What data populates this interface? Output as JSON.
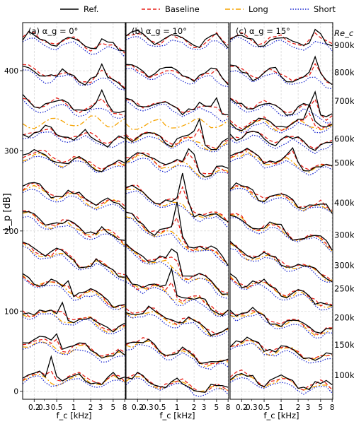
{
  "chart_data": {
    "type": "line",
    "legend": {
      "placement": "top",
      "entries": [
        {
          "name": "Ref.",
          "color": "#000000",
          "style": "solid"
        },
        {
          "name": "Baseline",
          "color": "#e8211a",
          "style": "dashed"
        },
        {
          "name": "Long",
          "color": "#f5a300",
          "style": "dashdot"
        },
        {
          "name": "Short",
          "color": "#1f2bd0",
          "style": "dotted"
        }
      ]
    },
    "ylabel": "L_p [dB]",
    "ylim": [
      -10,
      460
    ],
    "yticks": [
      0,
      100,
      200,
      300,
      400
    ],
    "xscale": "log",
    "xlim": [
      0.125,
      8.2
    ],
    "xticks": [
      0.2,
      0.5,
      1,
      2,
      5,
      8
    ],
    "xticklabels": [
      "0.2",
      "0.5",
      "1",
      "2",
      "5",
      "8"
    ],
    "minor_xticklabels": [
      {
        "value": 0.3,
        "label": "0.3"
      },
      {
        "value": 3,
        "label": "3"
      }
    ],
    "xlabel": "f_c [kHz]",
    "rec_title": "Re_c",
    "rec_labels": [
      {
        "label": "900k",
        "y": 432
      },
      {
        "label": "800k",
        "y": 398
      },
      {
        "label": "700k",
        "y": 362
      },
      {
        "label": "600k",
        "y": 315
      },
      {
        "label": "500k",
        "y": 285
      },
      {
        "label": "400k",
        "y": 235
      },
      {
        "label": "300k",
        "y": 195
      },
      {
        "label": "300k",
        "y": 157
      },
      {
        "label": "250k",
        "y": 128
      },
      {
        "label": "200k",
        "y": 92
      },
      {
        "label": "150k",
        "y": 58
      },
      {
        "label": "100k",
        "y": 20
      }
    ],
    "freqs": [
      0.125,
      0.16,
      0.2,
      0.25,
      0.315,
      0.4,
      0.5,
      0.63,
      0.8,
      1,
      1.25,
      1.6,
      2,
      2.5,
      3.15,
      4,
      5,
      6.3,
      8
    ],
    "panels": [
      {
        "label": "(a) α_g = 0°",
        "curves": [
          {
            "offset": 438,
            "base_start": 4,
            "base_end": -12,
            "ref_peaks": [
              [
                3.0,
                12
              ]
            ],
            "long": false
          },
          {
            "offset": 398,
            "base_start": 2,
            "base_end": -12,
            "ref_peaks": [
              [
                3.0,
                14
              ]
            ],
            "long": false
          },
          {
            "offset": 362,
            "base_start": 0,
            "base_end": -12,
            "ref_peaks": [
              [
                3.1,
                14
              ]
            ],
            "long": false
          },
          {
            "offset": 345,
            "base_start": -10,
            "base_end": -6,
            "ref_peaks": [],
            "long": true,
            "long_only": true
          },
          {
            "offset": 322,
            "base_start": 4,
            "base_end": -10,
            "ref_peaks": [],
            "long": false
          },
          {
            "offset": 295,
            "base_start": 2,
            "base_end": -16,
            "ref_peaks": [],
            "long": true
          },
          {
            "offset": 253,
            "base_start": 2,
            "base_end": -22,
            "ref_peaks": [],
            "long": true
          },
          {
            "offset": 215,
            "base_start": 4,
            "base_end": -24,
            "ref_peaks": [],
            "long": true
          },
          {
            "offset": 177,
            "base_start": 4,
            "base_end": -28,
            "ref_peaks": [],
            "long": true
          },
          {
            "offset": 140,
            "base_start": 4,
            "base_end": -32,
            "ref_peaks": [
              [
                0.8,
                10
              ]
            ],
            "long": true
          },
          {
            "offset": 101,
            "base_start": 2,
            "base_end": -22,
            "ref_peaks": [
              [
                0.63,
                22
              ]
            ],
            "long": true
          },
          {
            "offset": 62,
            "base_start": 2,
            "base_end": -18,
            "ref_peaks": [
              [
                0.5,
                22
              ]
            ],
            "long": true
          },
          {
            "offset": 18,
            "base_start": 0,
            "base_end": -4,
            "ref_peaks": [
              [
                0.4,
                28
              ]
            ],
            "long": true
          }
        ]
      },
      {
        "label": "(b) α_g = 10°",
        "curves": [
          {
            "offset": 440,
            "base_start": 2,
            "base_end": -6,
            "ref_peaks": [
              [
                5.0,
                8
              ]
            ],
            "long": false
          },
          {
            "offset": 400,
            "base_start": 2,
            "base_end": -10,
            "ref_peaks": [
              [
                5.0,
                12
              ]
            ],
            "long": false
          },
          {
            "offset": 362,
            "base_start": 0,
            "base_end": -14,
            "ref_peaks": [
              [
                5.0,
                20
              ]
            ],
            "long": false
          },
          {
            "offset": 345,
            "base_start": -12,
            "base_end": -8,
            "ref_peaks": [],
            "long": true,
            "long_only": true
          },
          {
            "offset": 320,
            "base_start": 2,
            "base_end": -14,
            "ref_peaks": [
              [
                2.5,
                30
              ]
            ],
            "long": true
          },
          {
            "offset": 295,
            "base_start": 0,
            "base_end": -24,
            "ref_peaks": [
              [
                1.8,
                30
              ]
            ],
            "long": true
          },
          {
            "offset": 252,
            "base_start": 2,
            "base_end": -40,
            "ref_peaks": [
              [
                1.3,
                38
              ]
            ],
            "long": true
          },
          {
            "offset": 215,
            "base_start": 2,
            "base_end": -50,
            "ref_peaks": [
              [
                1.0,
                40
              ]
            ],
            "long": true
          },
          {
            "offset": 177,
            "base_start": 2,
            "base_end": -52,
            "ref_peaks": [
              [
                0.9,
                36
              ]
            ],
            "long": true
          },
          {
            "offset": 140,
            "base_start": 0,
            "base_end": -40,
            "ref_peaks": [
              [
                0.8,
                32
              ]
            ],
            "long": true
          },
          {
            "offset": 100,
            "base_start": 4,
            "base_end": -26,
            "ref_peaks": [
              [
                0.7,
                8
              ]
            ],
            "long": true
          },
          {
            "offset": 62,
            "base_start": 2,
            "base_end": -30,
            "ref_peaks": [],
            "long": true
          },
          {
            "offset": 15,
            "base_start": 2,
            "base_end": -14,
            "ref_peaks": [],
            "long": true
          }
        ]
      },
      {
        "label": "(c) α_g = 15°",
        "curves": [
          {
            "offset": 440,
            "base_start": 2,
            "base_end": -6,
            "ref_peaks": [
              [
                4.2,
                16
              ]
            ],
            "long": false
          },
          {
            "offset": 398,
            "base_start": 2,
            "base_end": -10,
            "ref_peaks": [
              [
                4.2,
                24
              ]
            ],
            "long": false
          },
          {
            "offset": 362,
            "base_start": 0,
            "base_end": -16,
            "ref_peaks": [
              [
                4.0,
                26
              ]
            ],
            "long": false
          },
          {
            "offset": 345,
            "base_start": -10,
            "base_end": -12,
            "ref_peaks": [
              [
                3.2,
                24
              ]
            ],
            "long": true,
            "long_only": false
          },
          {
            "offset": 320,
            "base_start": 2,
            "base_end": -14,
            "ref_peaks": [],
            "long": false
          },
          {
            "offset": 295,
            "base_start": 2,
            "base_end": -18,
            "ref_peaks": [
              [
                1.6,
                18
              ]
            ],
            "long": true
          },
          {
            "offset": 253,
            "base_start": 2,
            "base_end": -26,
            "ref_peaks": [],
            "long": true
          },
          {
            "offset": 215,
            "base_start": 2,
            "base_end": -30,
            "ref_peaks": [],
            "long": true
          },
          {
            "offset": 177,
            "base_start": 2,
            "base_end": -32,
            "ref_peaks": [],
            "long": true
          },
          {
            "offset": 140,
            "base_start": 2,
            "base_end": -30,
            "ref_peaks": [],
            "long": true
          },
          {
            "offset": 100,
            "base_start": 2,
            "base_end": -26,
            "ref_peaks": [],
            "long": true
          },
          {
            "offset": 62,
            "base_start": 2,
            "base_end": -22,
            "ref_peaks": [],
            "long": true
          },
          {
            "offset": 18,
            "base_start": 2,
            "base_end": -14,
            "ref_peaks": [],
            "long": true
          }
        ]
      }
    ],
    "grid": true
  }
}
